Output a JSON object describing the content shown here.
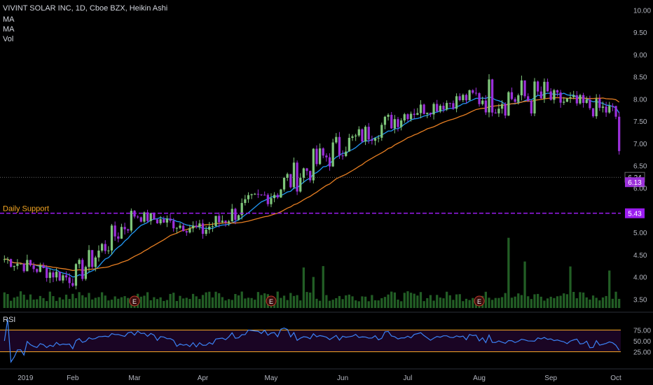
{
  "header": {
    "title": "VIVINT SOLAR INC, 1D, Cboe BZX, Heikin Ashi",
    "indicators": [
      "MA",
      "MA",
      "Vol"
    ]
  },
  "colors": {
    "background": "#000000",
    "up_candle": "#7ec67a",
    "down_candle": "#9b30d9",
    "ma_fast": "#2196f3",
    "ma_slow": "#e67e22",
    "support_line": "#9b1cf0",
    "support_text": "#f5a623",
    "volume": "#2e7d32",
    "rsi_line": "#3b82f6",
    "rsi_band": "#1a0524",
    "rsi_bounds": "#f5a623",
    "price_tag_last": "#9b30d9"
  },
  "annotations": {
    "support_label": "Daily Support",
    "earnings_marker": "E",
    "rsi_label": "RSI"
  },
  "chart_data": {
    "type": "candlestick",
    "style": "Heikin Ashi",
    "ylim": [
      3.3,
      10.1
    ],
    "y_ticks": [
      "10.00",
      "9.50",
      "9.00",
      "8.50",
      "8.00",
      "7.50",
      "7.00",
      "6.50",
      "6.00",
      "5.50",
      "5.00",
      "4.50",
      "4.00",
      "3.50"
    ],
    "x_ticks": [
      "2019",
      "Feb",
      "Mar",
      "Apr",
      "May",
      "Jun",
      "Jul",
      "Aug",
      "Sep",
      "Oct"
    ],
    "months": [
      {
        "label": "Jan",
        "days": 21,
        "open": 4.4,
        "close": 3.95,
        "low": 3.62,
        "high": 4.6
      },
      {
        "label": "Feb",
        "days": 19,
        "open": 3.95,
        "close": 5.4,
        "low": 3.8,
        "high": 5.5
      },
      {
        "label": "Mar",
        "days": 21,
        "open": 5.4,
        "close": 5.05,
        "low": 4.6,
        "high": 5.45
      },
      {
        "label": "Apr",
        "days": 21,
        "open": 5.05,
        "close": 5.9,
        "low": 4.85,
        "high": 6.2
      },
      {
        "label": "May",
        "days": 22,
        "open": 5.9,
        "close": 6.95,
        "low": 5.3,
        "high": 7.4
      },
      {
        "label": "Jun",
        "days": 20,
        "open": 6.95,
        "close": 7.7,
        "low": 6.6,
        "high": 8.0
      },
      {
        "label": "Jul",
        "days": 22,
        "open": 7.7,
        "close": 8.1,
        "low": 7.4,
        "high": 8.4
      },
      {
        "label": "Aug",
        "days": 22,
        "open": 8.1,
        "close": 8.0,
        "low": 7.2,
        "high": 9.85
      },
      {
        "label": "Sep",
        "days": 20,
        "open": 8.0,
        "close": 7.7,
        "low": 7.1,
        "high": 8.4
      },
      {
        "label": "Oct",
        "days": 2,
        "open": 7.6,
        "close": 6.13,
        "low": 5.85,
        "high": 7.7
      }
    ],
    "series": [
      {
        "name": "MA",
        "color": "#2196f3"
      },
      {
        "name": "MA",
        "color": "#e67e22"
      }
    ],
    "support_level": 5.43,
    "support_label_value": "5.43",
    "last_price": "6.13",
    "reference_price": "6.24",
    "earnings_dates": [
      "Mar",
      "May",
      "Aug"
    ],
    "volume": {
      "avg_line": true,
      "spikes": [
        {
          "month": "May",
          "value": "high"
        },
        {
          "month": "Aug",
          "value": "max"
        },
        {
          "month": "Sep",
          "value": "high"
        }
      ]
    },
    "rsi": {
      "upper": 75,
      "lower": 25,
      "ticks": [
        "75.00",
        "50.00",
        "25.00"
      ]
    }
  }
}
